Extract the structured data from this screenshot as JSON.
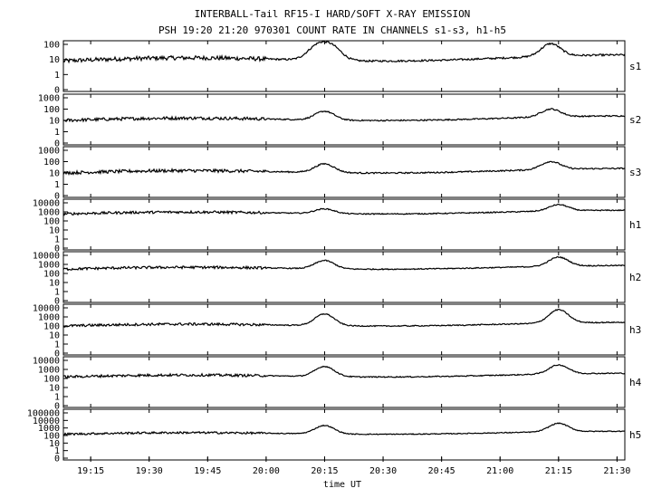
{
  "title": "INTERBALL-Tail RF15-I HARD/SOFT X-RAY EMISSION",
  "subtitle": "PSH 19:20 21:20 970301  COUNT RATE IN CHANNELS s1-s3, h1-h5",
  "chart_data": {
    "type": "line",
    "title": "INTERBALL-Tail RF15-I HARD/SOFT X-RAY EMISSION",
    "subtitle": "PSH 19:20 21:20 970301  COUNT RATE IN CHANNELS s1-s3, h1-h5",
    "xlabel": "time UT",
    "x_ticks": [
      "19:15",
      "19:30",
      "19:45",
      "20:00",
      "20:15",
      "20:30",
      "20:45",
      "21:00",
      "21:15",
      "21:30"
    ],
    "xlim": [
      "19:08",
      "21:32"
    ],
    "y_scale": "log",
    "grid": false,
    "panels": [
      {
        "name": "s1",
        "y_ticks": [
          "100",
          "10",
          "1",
          "0"
        ],
        "baseline": 8,
        "events": [
          {
            "time": "20:13",
            "value": 60
          },
          {
            "time": "20:17",
            "value": 55
          },
          {
            "time": "21:13",
            "value": 55
          }
        ]
      },
      {
        "name": "s2",
        "y_ticks": [
          "1000",
          "100",
          "10",
          "1",
          "0"
        ],
        "baseline": 10,
        "events": [
          {
            "time": "20:15",
            "value": 60
          },
          {
            "time": "21:13",
            "value": 50
          }
        ]
      },
      {
        "name": "s3",
        "y_ticks": [
          "1000",
          "100",
          "10",
          "1",
          "0"
        ],
        "baseline": 10,
        "events": [
          {
            "time": "20:15",
            "value": 60
          },
          {
            "time": "21:13",
            "value": 50
          }
        ]
      },
      {
        "name": "h1",
        "y_ticks": [
          "10000",
          "1000",
          "100",
          "10",
          "1",
          "0"
        ],
        "baseline": 600,
        "events": [
          {
            "time": "20:15",
            "value": 2000
          },
          {
            "time": "21:15",
            "value": 3000
          }
        ]
      },
      {
        "name": "h2",
        "y_ticks": [
          "10000",
          "1000",
          "100",
          "10",
          "1",
          "0"
        ],
        "baseline": 300,
        "events": [
          {
            "time": "20:15",
            "value": 2500
          },
          {
            "time": "21:15",
            "value": 3000
          }
        ]
      },
      {
        "name": "h3",
        "y_ticks": [
          "10000",
          "1000",
          "100",
          "10",
          "1",
          "0"
        ],
        "baseline": 100,
        "events": [
          {
            "time": "20:15",
            "value": 2000
          },
          {
            "time": "21:15",
            "value": 3000
          }
        ]
      },
      {
        "name": "h4",
        "y_ticks": [
          "10000",
          "1000",
          "100",
          "10",
          "1",
          "0"
        ],
        "baseline": 150,
        "events": [
          {
            "time": "20:15",
            "value": 2000
          },
          {
            "time": "21:15",
            "value": 1500
          }
        ]
      },
      {
        "name": "h5",
        "y_ticks": [
          "100000",
          "10000",
          "1000",
          "100",
          "10",
          "1",
          "0"
        ],
        "baseline": 150,
        "events": [
          {
            "time": "20:15",
            "value": 2000
          },
          {
            "time": "21:15",
            "value": 2000
          }
        ]
      }
    ]
  }
}
